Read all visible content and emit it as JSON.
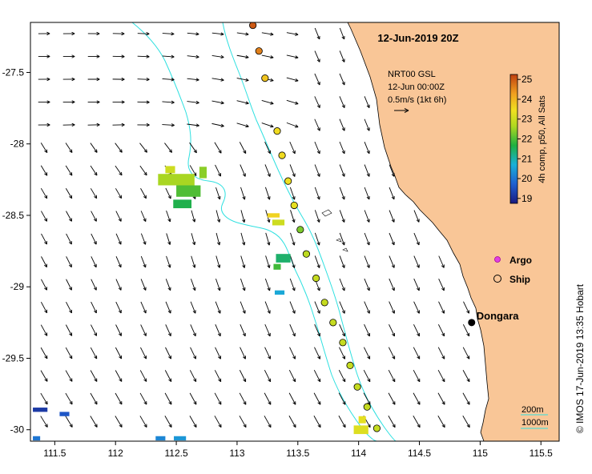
{
  "title": "12-Jun-2019 20Z",
  "product": {
    "line1": "NRT00 GSL",
    "line2": "12-Jun 00:00Z",
    "line3": "0.5m/s (1kt 6h)"
  },
  "colorbar": {
    "label": "4h comp, p50, All Sats",
    "ticks": [
      "25",
      "24",
      "23",
      "22",
      "21",
      "20",
      "19"
    ],
    "min": 18.75,
    "max": 25.25,
    "unit": "degC"
  },
  "legend": {
    "argo": "Argo",
    "ship": "Ship"
  },
  "place": {
    "name": "Dongara",
    "lon": 114.93,
    "lat": -29.25
  },
  "depth_legend": {
    "contour_200": "200m",
    "contour_1000": "1000m"
  },
  "credit": "© IMOS 17-Jun-2019 13:35 Hobart",
  "axes": {
    "lon_ticks": [
      "111.5",
      "112",
      "112.5",
      "113",
      "113.5",
      "114",
      "114.5",
      "115",
      "115.5"
    ],
    "lat_ticks": [
      "-27.5",
      "-28",
      "-28.5",
      "-29",
      "-29.5",
      "-30"
    ],
    "lon_range": [
      111.3,
      115.65
    ],
    "lat_range": [
      -30.08,
      -27.15
    ]
  },
  "ship_track": [
    {
      "lon": 113.13,
      "lat": -27.17,
      "sst": 25.0
    },
    {
      "lon": 113.18,
      "lat": -27.35,
      "sst": 24.6
    },
    {
      "lon": 113.23,
      "lat": -27.54,
      "sst": 23.8
    },
    {
      "lon": 113.33,
      "lat": -27.91,
      "sst": 23.5
    },
    {
      "lon": 113.37,
      "lat": -28.08,
      "sst": 23.5
    },
    {
      "lon": 113.42,
      "lat": -28.26,
      "sst": 23.4
    },
    {
      "lon": 113.47,
      "lat": -28.43,
      "sst": 23.3
    },
    {
      "lon": 113.52,
      "lat": -28.6,
      "sst": 22.3
    },
    {
      "lon": 113.57,
      "lat": -28.77,
      "sst": 22.8
    },
    {
      "lon": 113.65,
      "lat": -28.94,
      "sst": 22.9
    },
    {
      "lon": 113.72,
      "lat": -29.11,
      "sst": 22.9
    },
    {
      "lon": 113.79,
      "lat": -29.25,
      "sst": 22.9
    },
    {
      "lon": 113.87,
      "lat": -29.39,
      "sst": 22.9
    },
    {
      "lon": 113.93,
      "lat": -29.55,
      "sst": 22.9
    },
    {
      "lon": 113.99,
      "lat": -29.7,
      "sst": 22.9
    },
    {
      "lon": 114.07,
      "lat": -29.84,
      "sst": 22.9
    },
    {
      "lon": 114.15,
      "lat": -29.99,
      "sst": 22.9
    }
  ],
  "sst_patches": [
    {
      "lon": 112.45,
      "lat": -28.18,
      "w": 0.08,
      "h": 0.05,
      "sst": 23.0
    },
    {
      "lon": 112.5,
      "lat": -28.25,
      "w": 0.3,
      "h": 0.08,
      "sst": 22.6
    },
    {
      "lon": 112.6,
      "lat": -28.33,
      "w": 0.2,
      "h": 0.08,
      "sst": 22.0
    },
    {
      "lon": 112.55,
      "lat": -28.42,
      "w": 0.15,
      "h": 0.06,
      "sst": 21.6
    },
    {
      "lon": 112.72,
      "lat": -28.2,
      "w": 0.06,
      "h": 0.08,
      "sst": 22.4
    },
    {
      "lon": 113.3,
      "lat": -28.5,
      "w": 0.1,
      "h": 0.03,
      "sst": 23.6
    },
    {
      "lon": 113.34,
      "lat": -28.55,
      "w": 0.1,
      "h": 0.04,
      "sst": 23.0
    },
    {
      "lon": 113.38,
      "lat": -28.8,
      "w": 0.12,
      "h": 0.06,
      "sst": 21.4
    },
    {
      "lon": 113.33,
      "lat": -28.86,
      "w": 0.06,
      "h": 0.04,
      "sst": 21.9
    },
    {
      "lon": 113.35,
      "lat": -29.04,
      "w": 0.08,
      "h": 0.03,
      "sst": 20.6
    },
    {
      "lon": 114.03,
      "lat": -29.93,
      "w": 0.06,
      "h": 0.05,
      "sst": 23.3
    },
    {
      "lon": 114.02,
      "lat": -30.0,
      "w": 0.12,
      "h": 0.06,
      "sst": 23.2
    },
    {
      "lon": 111.38,
      "lat": -29.86,
      "w": 0.12,
      "h": 0.03,
      "sst": 19.2
    },
    {
      "lon": 111.58,
      "lat": -29.89,
      "w": 0.08,
      "h": 0.03,
      "sst": 19.6
    },
    {
      "lon": 111.35,
      "lat": -30.06,
      "w": 0.06,
      "h": 0.03,
      "sst": 20.0
    },
    {
      "lon": 112.37,
      "lat": -30.06,
      "w": 0.08,
      "h": 0.03,
      "sst": 20.2
    },
    {
      "lon": 112.53,
      "lat": -30.06,
      "w": 0.1,
      "h": 0.03,
      "sst": 20.4
    }
  ],
  "colors": {
    "land": "#f9c697",
    "coast": "#000000",
    "contour": "#2ee0e0",
    "place_dot": "#000000"
  }
}
